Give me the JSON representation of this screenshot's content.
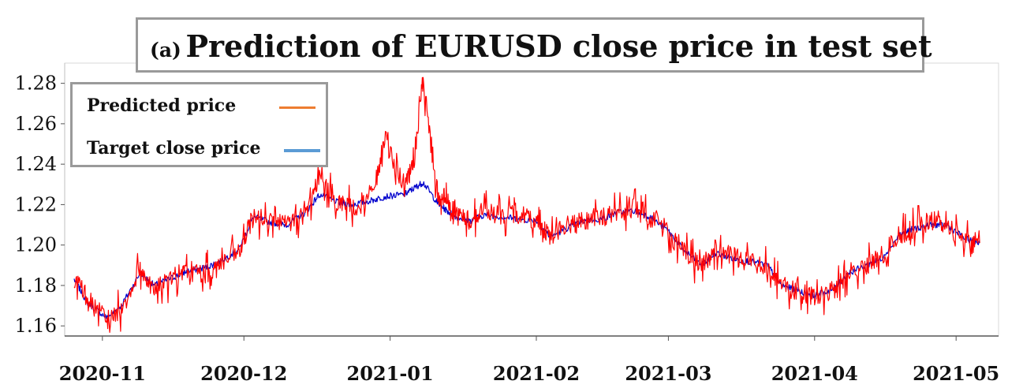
{
  "chart_data": {
    "type": "line",
    "title_prefix": "(a)",
    "title": "Prediction of EURUSD close price in test set",
    "xlabel": "",
    "ylabel": "",
    "x_ticks": [
      "2020-11",
      "2020-12",
      "2021-01",
      "2021-02",
      "2021-03",
      "2021-04",
      "2021-05"
    ],
    "y_ticks": [
      "1.16",
      "1.18",
      "1.20",
      "1.22",
      "1.24",
      "1.26",
      "1.28"
    ],
    "ylim": [
      1.155,
      1.29
    ],
    "xlim": [
      "2020-10-24",
      "2021-05-10"
    ],
    "grid": false,
    "legend_position": "top-left",
    "series": [
      {
        "name": "Predicted price",
        "legend_color": "#ed7d31",
        "line_color": "#ff0000",
        "x": [
          "2020-10-26",
          "2020-10-29",
          "2020-11-02",
          "2020-11-05",
          "2020-11-09",
          "2020-11-12",
          "2020-11-16",
          "2020-11-19",
          "2020-11-23",
          "2020-11-26",
          "2020-11-30",
          "2020-12-03",
          "2020-12-07",
          "2020-12-10",
          "2020-12-14",
          "2020-12-17",
          "2020-12-21",
          "2020-12-24",
          "2020-12-28",
          "2020-12-31",
          "2021-01-04",
          "2021-01-06",
          "2021-01-08",
          "2021-01-11",
          "2021-01-13",
          "2021-01-15",
          "2021-01-18",
          "2021-01-21",
          "2021-01-25",
          "2021-01-28",
          "2021-02-01",
          "2021-02-04",
          "2021-02-08",
          "2021-02-11",
          "2021-02-15",
          "2021-02-18",
          "2021-02-22",
          "2021-02-25",
          "2021-03-01",
          "2021-03-04",
          "2021-03-08",
          "2021-03-11",
          "2021-03-15",
          "2021-03-18",
          "2021-03-22",
          "2021-03-25",
          "2021-03-29",
          "2021-04-01",
          "2021-04-05",
          "2021-04-08",
          "2021-04-12",
          "2021-04-15",
          "2021-04-19",
          "2021-04-22",
          "2021-04-26",
          "2021-04-29",
          "2021-05-03",
          "2021-05-06"
        ],
        "values": [
          1.184,
          1.172,
          1.163,
          1.168,
          1.188,
          1.178,
          1.184,
          1.187,
          1.186,
          1.191,
          1.196,
          1.214,
          1.212,
          1.21,
          1.215,
          1.232,
          1.222,
          1.218,
          1.224,
          1.252,
          1.228,
          1.24,
          1.282,
          1.226,
          1.222,
          1.215,
          1.212,
          1.218,
          1.214,
          1.216,
          1.212,
          1.205,
          1.21,
          1.212,
          1.214,
          1.216,
          1.218,
          1.215,
          1.206,
          1.197,
          1.189,
          1.198,
          1.194,
          1.192,
          1.19,
          1.18,
          1.176,
          1.174,
          1.177,
          1.186,
          1.19,
          1.194,
          1.205,
          1.208,
          1.212,
          1.21,
          1.203,
          1.201
        ]
      },
      {
        "name": "Target close price",
        "legend_color": "#5b9bd5",
        "line_color": "#0000cc",
        "x": [
          "2020-10-26",
          "2020-10-29",
          "2020-11-02",
          "2020-11-05",
          "2020-11-09",
          "2020-11-12",
          "2020-11-16",
          "2020-11-19",
          "2020-11-23",
          "2020-11-26",
          "2020-11-30",
          "2020-12-03",
          "2020-12-07",
          "2020-12-10",
          "2020-12-14",
          "2020-12-17",
          "2020-12-21",
          "2020-12-24",
          "2020-12-28",
          "2020-12-31",
          "2021-01-04",
          "2021-01-06",
          "2021-01-08",
          "2021-01-11",
          "2021-01-13",
          "2021-01-15",
          "2021-01-18",
          "2021-01-21",
          "2021-01-25",
          "2021-01-28",
          "2021-02-01",
          "2021-02-04",
          "2021-02-08",
          "2021-02-11",
          "2021-02-15",
          "2021-02-18",
          "2021-02-22",
          "2021-02-25",
          "2021-03-01",
          "2021-03-04",
          "2021-03-08",
          "2021-03-11",
          "2021-03-15",
          "2021-03-18",
          "2021-03-22",
          "2021-03-25",
          "2021-03-29",
          "2021-04-01",
          "2021-04-05",
          "2021-04-08",
          "2021-04-12",
          "2021-04-15",
          "2021-04-19",
          "2021-04-22",
          "2021-04-26",
          "2021-04-29",
          "2021-05-03",
          "2021-05-06"
        ],
        "values": [
          1.183,
          1.171,
          1.164,
          1.17,
          1.186,
          1.18,
          1.184,
          1.187,
          1.189,
          1.192,
          1.198,
          1.214,
          1.211,
          1.21,
          1.216,
          1.225,
          1.221,
          1.22,
          1.222,
          1.224,
          1.225,
          1.228,
          1.231,
          1.221,
          1.217,
          1.214,
          1.212,
          1.215,
          1.214,
          1.213,
          1.212,
          1.204,
          1.209,
          1.212,
          1.213,
          1.216,
          1.217,
          1.214,
          1.207,
          1.198,
          1.19,
          1.196,
          1.193,
          1.192,
          1.19,
          1.18,
          1.177,
          1.175,
          1.178,
          1.186,
          1.19,
          1.193,
          1.205,
          1.208,
          1.21,
          1.21,
          1.203,
          1.201
        ]
      }
    ]
  }
}
